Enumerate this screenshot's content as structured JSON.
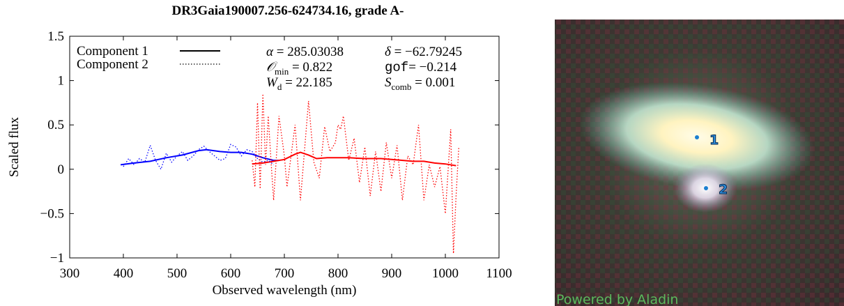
{
  "chart_data": {
    "type": "line",
    "title": "DR3Gaia190007.256-624734.16, grade A-",
    "x_label": "Observed wavelength (nm)",
    "y_label": "Scaled flux",
    "xlim": [
      300,
      1100
    ],
    "ylim": [
      -1,
      1.5
    ],
    "xticks": [
      300,
      400,
      500,
      600,
      700,
      800,
      900,
      1000,
      1100
    ],
    "yticks": [
      {
        "value": -1,
        "label": "−1"
      },
      {
        "value": -0.5,
        "label": "−0.5"
      },
      0,
      0.5,
      1,
      1.5
    ],
    "legend": "upper left",
    "series": [
      {
        "name": "Component 1",
        "dash": "solid",
        "legend_color": "#000000",
        "segments": [
          {
            "color": "#0000ff",
            "x": [
              395,
              420,
              450,
              480,
              510,
              540,
              555,
              580,
              600,
              620,
              640,
              660,
              680,
              690
            ],
            "values": [
              0.05,
              0.07,
              0.09,
              0.13,
              0.16,
              0.21,
              0.22,
              0.2,
              0.19,
              0.19,
              0.17,
              0.13,
              0.1,
              0.1
            ]
          },
          {
            "color": "#ff0000",
            "x": [
              640,
              660,
              680,
              700,
              720,
              730,
              745,
              760,
              780,
              800,
              820,
              850,
              880,
              900,
              940,
              960,
              980,
              1000,
              1020
            ],
            "values": [
              0.06,
              0.07,
              0.09,
              0.11,
              0.17,
              0.19,
              0.16,
              0.12,
              0.13,
              0.13,
              0.13,
              0.12,
              0.12,
              0.11,
              0.09,
              0.09,
              0.07,
              0.06,
              0.04
            ]
          }
        ]
      },
      {
        "name": "Component 2",
        "dash": "dotted",
        "legend_color": "#000000",
        "segments": [
          {
            "color": "#0000ff",
            "x": [
              400,
              410,
              420,
              430,
              440,
              450,
              460,
              470,
              480,
              490,
              500,
              510,
              520,
              530,
              540,
              550,
              560,
              570,
              580,
              590,
              600,
              610,
              620,
              630,
              640,
              650,
              660,
              670,
              680
            ],
            "values": [
              0.03,
              0.12,
              0.05,
              0.12,
              0.08,
              0.27,
              0.1,
              0.0,
              0.18,
              0.08,
              0.15,
              0.2,
              0.1,
              0.15,
              0.22,
              0.26,
              0.2,
              0.15,
              0.1,
              0.12,
              0.28,
              0.25,
              0.15,
              0.22,
              0.2,
              0.12,
              0.08,
              0.1,
              0.05
            ]
          },
          {
            "color": "#ff0000",
            "x": [
              640,
              645,
              650,
              655,
              660,
              665,
              670,
              675,
              680,
              690,
              700,
              705,
              720,
              730,
              745,
              755,
              765,
              775,
              785,
              795,
              800,
              805,
              810,
              820,
              830,
              840,
              850,
              860,
              870,
              880,
              890,
              900,
              910,
              920,
              930,
              940,
              950,
              960,
              970,
              980,
              990,
              1000,
              1010,
              1015,
              1020,
              1025
            ],
            "values": [
              0.1,
              -0.2,
              0.75,
              -0.22,
              0.85,
              0.05,
              0.6,
              0.1,
              -0.35,
              0.6,
              0.15,
              -0.2,
              0.5,
              -0.35,
              0.77,
              0.08,
              -0.1,
              0.48,
              0.2,
              0.3,
              0.5,
              0.45,
              0.6,
              0.1,
              0.35,
              -0.15,
              0.25,
              -0.3,
              0.2,
              -0.25,
              0.3,
              -0.1,
              0.27,
              -0.35,
              0.15,
              0.05,
              0.5,
              -0.35,
              0.05,
              -0.2,
              0.03,
              -0.5,
              0.45,
              -0.95,
              -0.3,
              0.25
            ]
          }
        ]
      }
    ],
    "annotations": [
      {
        "symbol": "α",
        "sub": "",
        "text": " = 285.03038"
      },
      {
        "symbol": "δ",
        "sub": "",
        "text": " = −62.79245"
      },
      {
        "symbol": "𝒪",
        "sub": "min",
        "text": " = 0.822"
      },
      {
        "symbol": "gof",
        "sub": "",
        "text": "= −0.214"
      },
      {
        "symbol": "W",
        "sub": "d",
        "text": " = 22.185"
      },
      {
        "symbol": "S",
        "sub": "comb",
        "text": " = 0.001"
      }
    ]
  },
  "image": {
    "markers": [
      "1",
      "2"
    ],
    "credit": "Powered by Aladin"
  }
}
